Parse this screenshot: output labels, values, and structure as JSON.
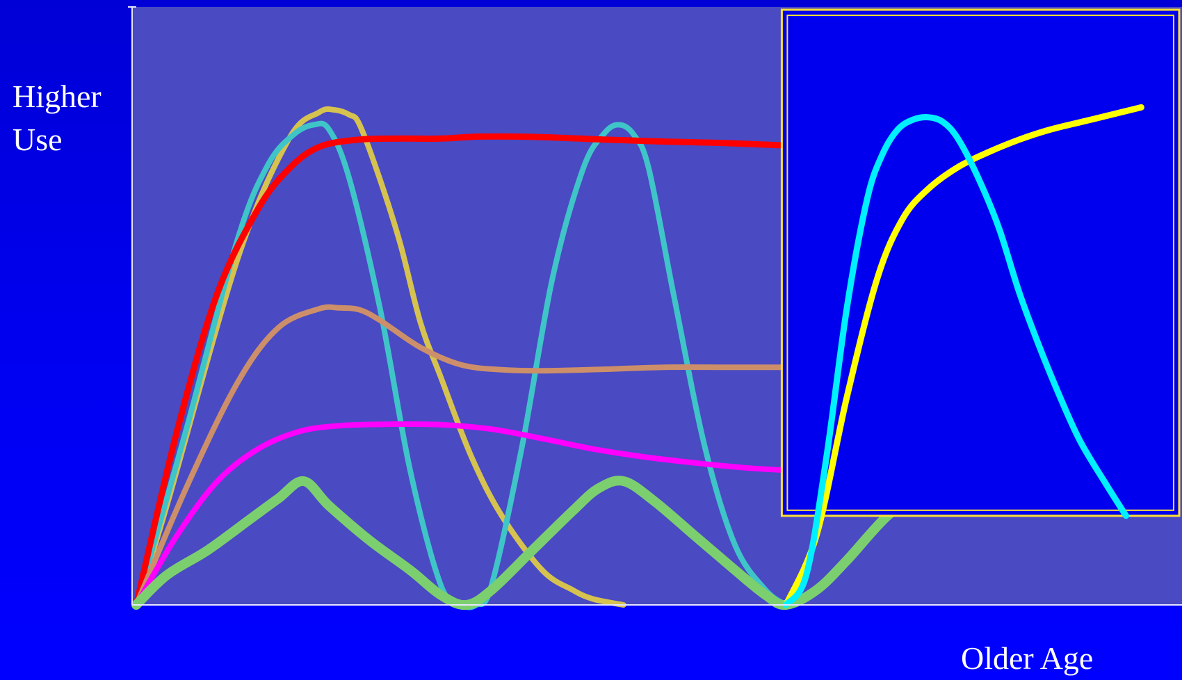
{
  "colors": {
    "background": "#0000ff",
    "plot_area": "#4a4ac2",
    "axes": "#e6e6ff",
    "highlight_frame": "#ffe033",
    "highlight_fill": "#0000ee"
  },
  "chart_data": {
    "type": "line",
    "title": "",
    "ylabel_lines": [
      "Higher",
      "Use"
    ],
    "xlabel": "Older Age",
    "xlim": [
      0,
      100
    ],
    "ylim": [
      0,
      100
    ],
    "grid": false,
    "legend": "none",
    "highlight_region": {
      "x_range": [
        64,
        100
      ],
      "y_range": [
        18,
        100
      ]
    },
    "series": [
      {
        "color": "#d6c24f",
        "width": 8,
        "x": [
          0,
          3,
          10,
          15,
          18,
          19.5,
          21,
          22,
          24,
          26,
          28,
          30,
          33,
          36,
          40,
          43,
          45,
          48
        ],
        "y": [
          0,
          20,
          70,
          94,
          99.5,
          100,
          99,
          97,
          86,
          73,
          57,
          46,
          30,
          18,
          7,
          3,
          1.2,
          0
        ]
      },
      {
        "color": "#3fc4c8",
        "width": 8,
        "x": [
          0,
          5,
          10,
          13,
          15.5,
          17.5,
          19,
          21,
          24,
          27,
          30,
          32,
          33.5,
          35,
          38,
          41,
          44,
          46,
          47.5,
          49,
          50.5,
          53,
          56,
          59,
          62,
          64
        ],
        "y": [
          0,
          36,
          74,
          89,
          95,
          97,
          96,
          86,
          60,
          27,
          4,
          0,
          0,
          4,
          32,
          66,
          88,
          95,
          97,
          95,
          88,
          62,
          32,
          12,
          3,
          0
        ]
      },
      {
        "color": "#ff0000",
        "width": 9,
        "x": [
          0,
          4,
          8,
          12,
          15,
          18,
          22,
          26,
          30,
          34,
          40,
          46,
          52,
          58,
          64,
          70,
          76,
          82,
          88,
          94,
          100
        ],
        "y": [
          0,
          35,
          63,
          80,
          88,
          92.5,
          94,
          94.2,
          94.2,
          94.6,
          94.5,
          94,
          93.6,
          93.3,
          92.8,
          92.4,
          92,
          91.6,
          91.2,
          90.8,
          90.4
        ]
      },
      {
        "color": "#cc8f6a",
        "width": 8,
        "x": [
          0,
          5,
          10,
          14,
          18,
          20,
          22,
          24,
          28,
          32,
          36,
          40,
          46,
          52,
          58,
          64,
          70,
          76,
          82,
          88,
          94,
          100
        ],
        "y": [
          0,
          24,
          45,
          56,
          59.8,
          60,
          59.6,
          57.5,
          52,
          48.5,
          47.5,
          47.3,
          47.6,
          48,
          48,
          48,
          48,
          48,
          48,
          48,
          48,
          48
        ]
      },
      {
        "color": "#ff00ff",
        "width": 8,
        "x": [
          0,
          4,
          8,
          12,
          16,
          20,
          25,
          30,
          35,
          40,
          45,
          50,
          55,
          60,
          64,
          68,
          72,
          75,
          78,
          82,
          86,
          90,
          94,
          97,
          100
        ],
        "y": [
          0,
          14,
          25,
          31.5,
          35,
          36.2,
          36.5,
          36.4,
          35.5,
          33.6,
          31.5,
          29.9,
          28.7,
          27.7,
          27.2,
          26.8,
          25.5,
          25.1,
          25.1,
          26.8,
          31,
          39,
          50,
          60,
          70
        ]
      },
      {
        "color": "#7ccf6e",
        "width": 14,
        "x": [
          0,
          3,
          7,
          11,
          14,
          16.5,
          19,
          23,
          27,
          30,
          32.5,
          35,
          39,
          43,
          45.5,
          48,
          51,
          55,
          59,
          62,
          64,
          67,
          70,
          74,
          78,
          82,
          86,
          89.5,
          92,
          95,
          98
        ],
        "y": [
          0,
          6,
          11,
          17,
          21.5,
          25,
          20,
          13,
          7,
          2,
          0,
          3,
          11,
          19,
          23.5,
          25,
          21,
          14,
          7,
          2,
          0,
          3,
          9,
          18,
          24,
          26,
          26,
          24.5,
          23.5,
          22.5,
          21
        ]
      },
      {
        "color": "#ffff00",
        "width": 9,
        "x": [
          64,
          67,
          70,
          73,
          75.5,
          78,
          81,
          84,
          87,
          90,
          93,
          96,
          99
        ],
        "y": [
          0,
          14,
          42,
          66,
          78,
          84,
          88.5,
          91.5,
          94,
          96,
          97.5,
          99,
          100.5
        ]
      },
      {
        "color": "#00f0ff",
        "width": 9,
        "x": [
          64,
          66,
          68,
          70,
          72,
          73.5,
          75,
          76.5,
          78,
          79.5,
          81,
          83,
          85,
          87,
          89,
          91,
          93,
          95.5,
          97.5
        ],
        "y": [
          0,
          6,
          30,
          60,
          82,
          91,
          96,
          98,
          98.5,
          97.5,
          94,
          86,
          76,
          63,
          52,
          42,
          33,
          24.5,
          18
        ]
      }
    ]
  }
}
